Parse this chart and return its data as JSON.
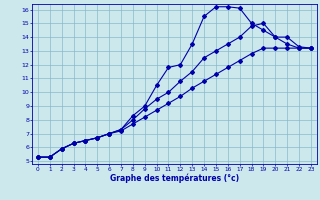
{
  "xlabel": "Graphe des températures (°c)",
  "bg_color": "#cce8ec",
  "line_color": "#0000aa",
  "grid_color": "#88bbcc",
  "xlim": [
    -0.5,
    23.5
  ],
  "ylim": [
    4.8,
    16.4
  ],
  "xticks": [
    0,
    1,
    2,
    3,
    4,
    5,
    6,
    7,
    8,
    9,
    10,
    11,
    12,
    13,
    14,
    15,
    16,
    17,
    18,
    19,
    20,
    21,
    22,
    23
  ],
  "yticks": [
    5,
    6,
    7,
    8,
    9,
    10,
    11,
    12,
    13,
    14,
    15,
    16
  ],
  "curve1_x": [
    0,
    1,
    2,
    3,
    4,
    5,
    6,
    7,
    8,
    9,
    10,
    11,
    12,
    13,
    14,
    15,
    16,
    17,
    18,
    19,
    20,
    21,
    22,
    23
  ],
  "curve1_y": [
    5.3,
    5.3,
    5.9,
    6.3,
    6.5,
    6.7,
    7.0,
    7.3,
    8.3,
    9.0,
    10.5,
    11.8,
    12.0,
    13.5,
    15.5,
    16.2,
    16.2,
    16.1,
    15.0,
    14.5,
    14.0,
    14.0,
    13.3,
    13.2
  ],
  "curve2_x": [
    0,
    1,
    2,
    3,
    4,
    5,
    6,
    7,
    8,
    9,
    10,
    11,
    12,
    13,
    14,
    15,
    16,
    17,
    18,
    19,
    20,
    21,
    22,
    23
  ],
  "curve2_y": [
    5.3,
    5.3,
    5.9,
    6.3,
    6.5,
    6.7,
    7.0,
    7.3,
    8.0,
    8.8,
    9.5,
    10.0,
    10.8,
    11.5,
    12.5,
    13.0,
    13.5,
    14.0,
    14.8,
    15.0,
    14.0,
    13.5,
    13.2,
    13.2
  ],
  "curve3_x": [
    0,
    1,
    2,
    3,
    4,
    5,
    6,
    7,
    8,
    9,
    10,
    11,
    12,
    13,
    14,
    15,
    16,
    17,
    18,
    19,
    20,
    21,
    22,
    23
  ],
  "curve3_y": [
    5.3,
    5.3,
    5.9,
    6.3,
    6.5,
    6.7,
    7.0,
    7.2,
    7.7,
    8.2,
    8.7,
    9.2,
    9.7,
    10.3,
    10.8,
    11.3,
    11.8,
    12.3,
    12.8,
    13.2,
    13.2,
    13.2,
    13.2,
    13.2
  ]
}
